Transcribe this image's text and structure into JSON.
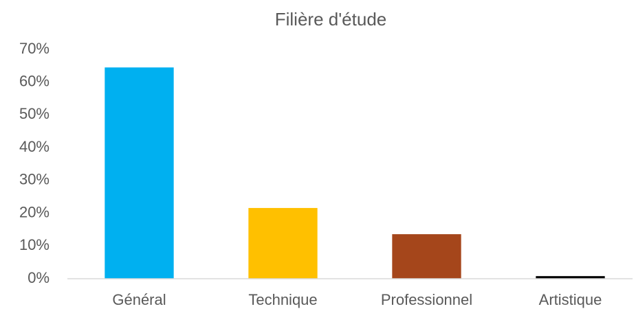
{
  "chart_data": {
    "type": "bar",
    "title": "Filière d'étude",
    "categories": [
      "Général",
      "Technique",
      "Professionnel",
      "Artistique"
    ],
    "values": [
      64.5,
      21.6,
      13.6,
      0.8
    ],
    "colors": [
      "#00b0f0",
      "#ffc000",
      "#a5461b",
      "#000000"
    ],
    "ylim": [
      0,
      70
    ],
    "yticks": [
      {
        "value": 0,
        "label": "0%"
      },
      {
        "value": 10,
        "label": "10%"
      },
      {
        "value": 20,
        "label": "20%"
      },
      {
        "value": 30,
        "label": "30%"
      },
      {
        "value": 40,
        "label": "40%"
      },
      {
        "value": 50,
        "label": "50%"
      },
      {
        "value": 60,
        "label": "60%"
      },
      {
        "value": 70,
        "label": "70%"
      }
    ],
    "grid": false
  }
}
